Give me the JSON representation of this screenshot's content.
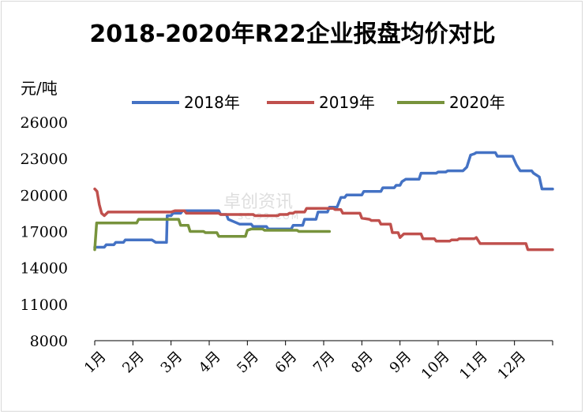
{
  "chart_data": {
    "type": "line",
    "title": "2018-2020年R22企业报盘均价对比",
    "ylabel": "元/吨",
    "xlabel": "",
    "ylim": [
      8000,
      26000
    ],
    "yticks": [
      8000,
      11000,
      14000,
      17000,
      20000,
      23000,
      26000
    ],
    "xlim": [
      1,
      13
    ],
    "categories": [
      "1月",
      "2月",
      "3月",
      "4月",
      "5月",
      "6月",
      "7月",
      "8月",
      "9月",
      "10月",
      "11月",
      "12月"
    ],
    "grid": false,
    "legend_position": "top",
    "series": [
      {
        "name": "2018年",
        "color": "#4472c4",
        "points": [
          [
            1.0,
            15700
          ],
          [
            1.25,
            15700
          ],
          [
            1.3,
            15900
          ],
          [
            1.5,
            15900
          ],
          [
            1.55,
            16100
          ],
          [
            1.75,
            16100
          ],
          [
            1.8,
            16300
          ],
          [
            2.5,
            16300
          ],
          [
            2.6,
            16100
          ],
          [
            2.88,
            16100
          ],
          [
            2.9,
            18300
          ],
          [
            3.0,
            18300
          ],
          [
            3.05,
            18500
          ],
          [
            3.25,
            18500
          ],
          [
            3.3,
            18700
          ],
          [
            4.25,
            18700
          ],
          [
            4.3,
            18400
          ],
          [
            4.45,
            18400
          ],
          [
            4.5,
            18000
          ],
          [
            4.65,
            17800
          ],
          [
            4.8,
            17600
          ],
          [
            5.1,
            17600
          ],
          [
            5.15,
            17400
          ],
          [
            5.5,
            17400
          ],
          [
            5.55,
            17200
          ],
          [
            6.15,
            17200
          ],
          [
            6.2,
            17500
          ],
          [
            6.45,
            17500
          ],
          [
            6.5,
            18000
          ],
          [
            6.8,
            18000
          ],
          [
            6.85,
            18600
          ],
          [
            7.1,
            18600
          ],
          [
            7.15,
            19000
          ],
          [
            7.35,
            19000
          ],
          [
            7.45,
            19800
          ],
          [
            7.55,
            19800
          ],
          [
            7.6,
            20000
          ],
          [
            8.0,
            20000
          ],
          [
            8.05,
            20300
          ],
          [
            8.5,
            20300
          ],
          [
            8.55,
            20600
          ],
          [
            8.85,
            20600
          ],
          [
            8.9,
            20800
          ],
          [
            9.0,
            20800
          ],
          [
            9.05,
            21100
          ],
          [
            9.15,
            21300
          ],
          [
            9.5,
            21300
          ],
          [
            9.55,
            21800
          ],
          [
            9.95,
            21800
          ],
          [
            10.0,
            21900
          ],
          [
            10.2,
            21900
          ],
          [
            10.25,
            22000
          ],
          [
            10.65,
            22000
          ],
          [
            10.75,
            22300
          ],
          [
            10.85,
            23300
          ],
          [
            10.95,
            23400
          ],
          [
            11.0,
            23500
          ],
          [
            11.5,
            23500
          ],
          [
            11.55,
            23200
          ],
          [
            11.95,
            23200
          ],
          [
            12.05,
            22500
          ],
          [
            12.15,
            22000
          ],
          [
            12.45,
            22000
          ],
          [
            12.5,
            21800
          ],
          [
            12.65,
            21500
          ],
          [
            12.72,
            20500
          ],
          [
            13.0,
            20500
          ]
        ]
      },
      {
        "name": "2019年",
        "color": "#c0504d",
        "points": [
          [
            1.0,
            20500
          ],
          [
            1.06,
            20300
          ],
          [
            1.12,
            19200
          ],
          [
            1.18,
            18500
          ],
          [
            1.25,
            18300
          ],
          [
            1.35,
            18600
          ],
          [
            1.45,
            18600
          ],
          [
            3.0,
            18600
          ],
          [
            3.1,
            18700
          ],
          [
            3.35,
            18700
          ],
          [
            3.4,
            18500
          ],
          [
            4.25,
            18500
          ],
          [
            4.3,
            18400
          ],
          [
            5.15,
            18400
          ],
          [
            5.2,
            18300
          ],
          [
            5.8,
            18300
          ],
          [
            5.85,
            18400
          ],
          [
            6.05,
            18400
          ],
          [
            6.1,
            18500
          ],
          [
            6.2,
            18500
          ],
          [
            6.25,
            18600
          ],
          [
            6.5,
            18600
          ],
          [
            6.55,
            18900
          ],
          [
            7.25,
            18900
          ],
          [
            7.3,
            18800
          ],
          [
            7.45,
            18800
          ],
          [
            7.5,
            18500
          ],
          [
            7.95,
            18500
          ],
          [
            8.0,
            18100
          ],
          [
            8.2,
            18000
          ],
          [
            8.25,
            17900
          ],
          [
            8.45,
            17900
          ],
          [
            8.5,
            17600
          ],
          [
            8.75,
            17600
          ],
          [
            8.8,
            16900
          ],
          [
            8.95,
            16900
          ],
          [
            9.0,
            16500
          ],
          [
            9.1,
            16800
          ],
          [
            9.55,
            16800
          ],
          [
            9.6,
            16400
          ],
          [
            9.9,
            16400
          ],
          [
            9.95,
            16200
          ],
          [
            10.3,
            16200
          ],
          [
            10.35,
            16300
          ],
          [
            10.5,
            16300
          ],
          [
            10.55,
            16400
          ],
          [
            10.95,
            16400
          ],
          [
            11.0,
            16500
          ],
          [
            11.1,
            16000
          ],
          [
            12.3,
            16000
          ],
          [
            12.35,
            15500
          ],
          [
            13.0,
            15500
          ]
        ]
      },
      {
        "name": "2020年",
        "color": "#77933c",
        "points": [
          [
            1.0,
            15500
          ],
          [
            1.05,
            17700
          ],
          [
            2.1,
            17700
          ],
          [
            2.15,
            18000
          ],
          [
            3.2,
            18000
          ],
          [
            3.25,
            17500
          ],
          [
            3.45,
            17500
          ],
          [
            3.5,
            17000
          ],
          [
            3.85,
            17000
          ],
          [
            3.9,
            16900
          ],
          [
            4.2,
            16900
          ],
          [
            4.25,
            16600
          ],
          [
            4.95,
            16600
          ],
          [
            5.0,
            17100
          ],
          [
            5.1,
            17200
          ],
          [
            5.4,
            17200
          ],
          [
            5.45,
            17100
          ],
          [
            6.3,
            17100
          ],
          [
            6.35,
            17000
          ],
          [
            7.15,
            17000
          ]
        ]
      }
    ]
  },
  "watermark": {
    "main": "卓创资讯",
    "sub": "SCI99.COM"
  }
}
